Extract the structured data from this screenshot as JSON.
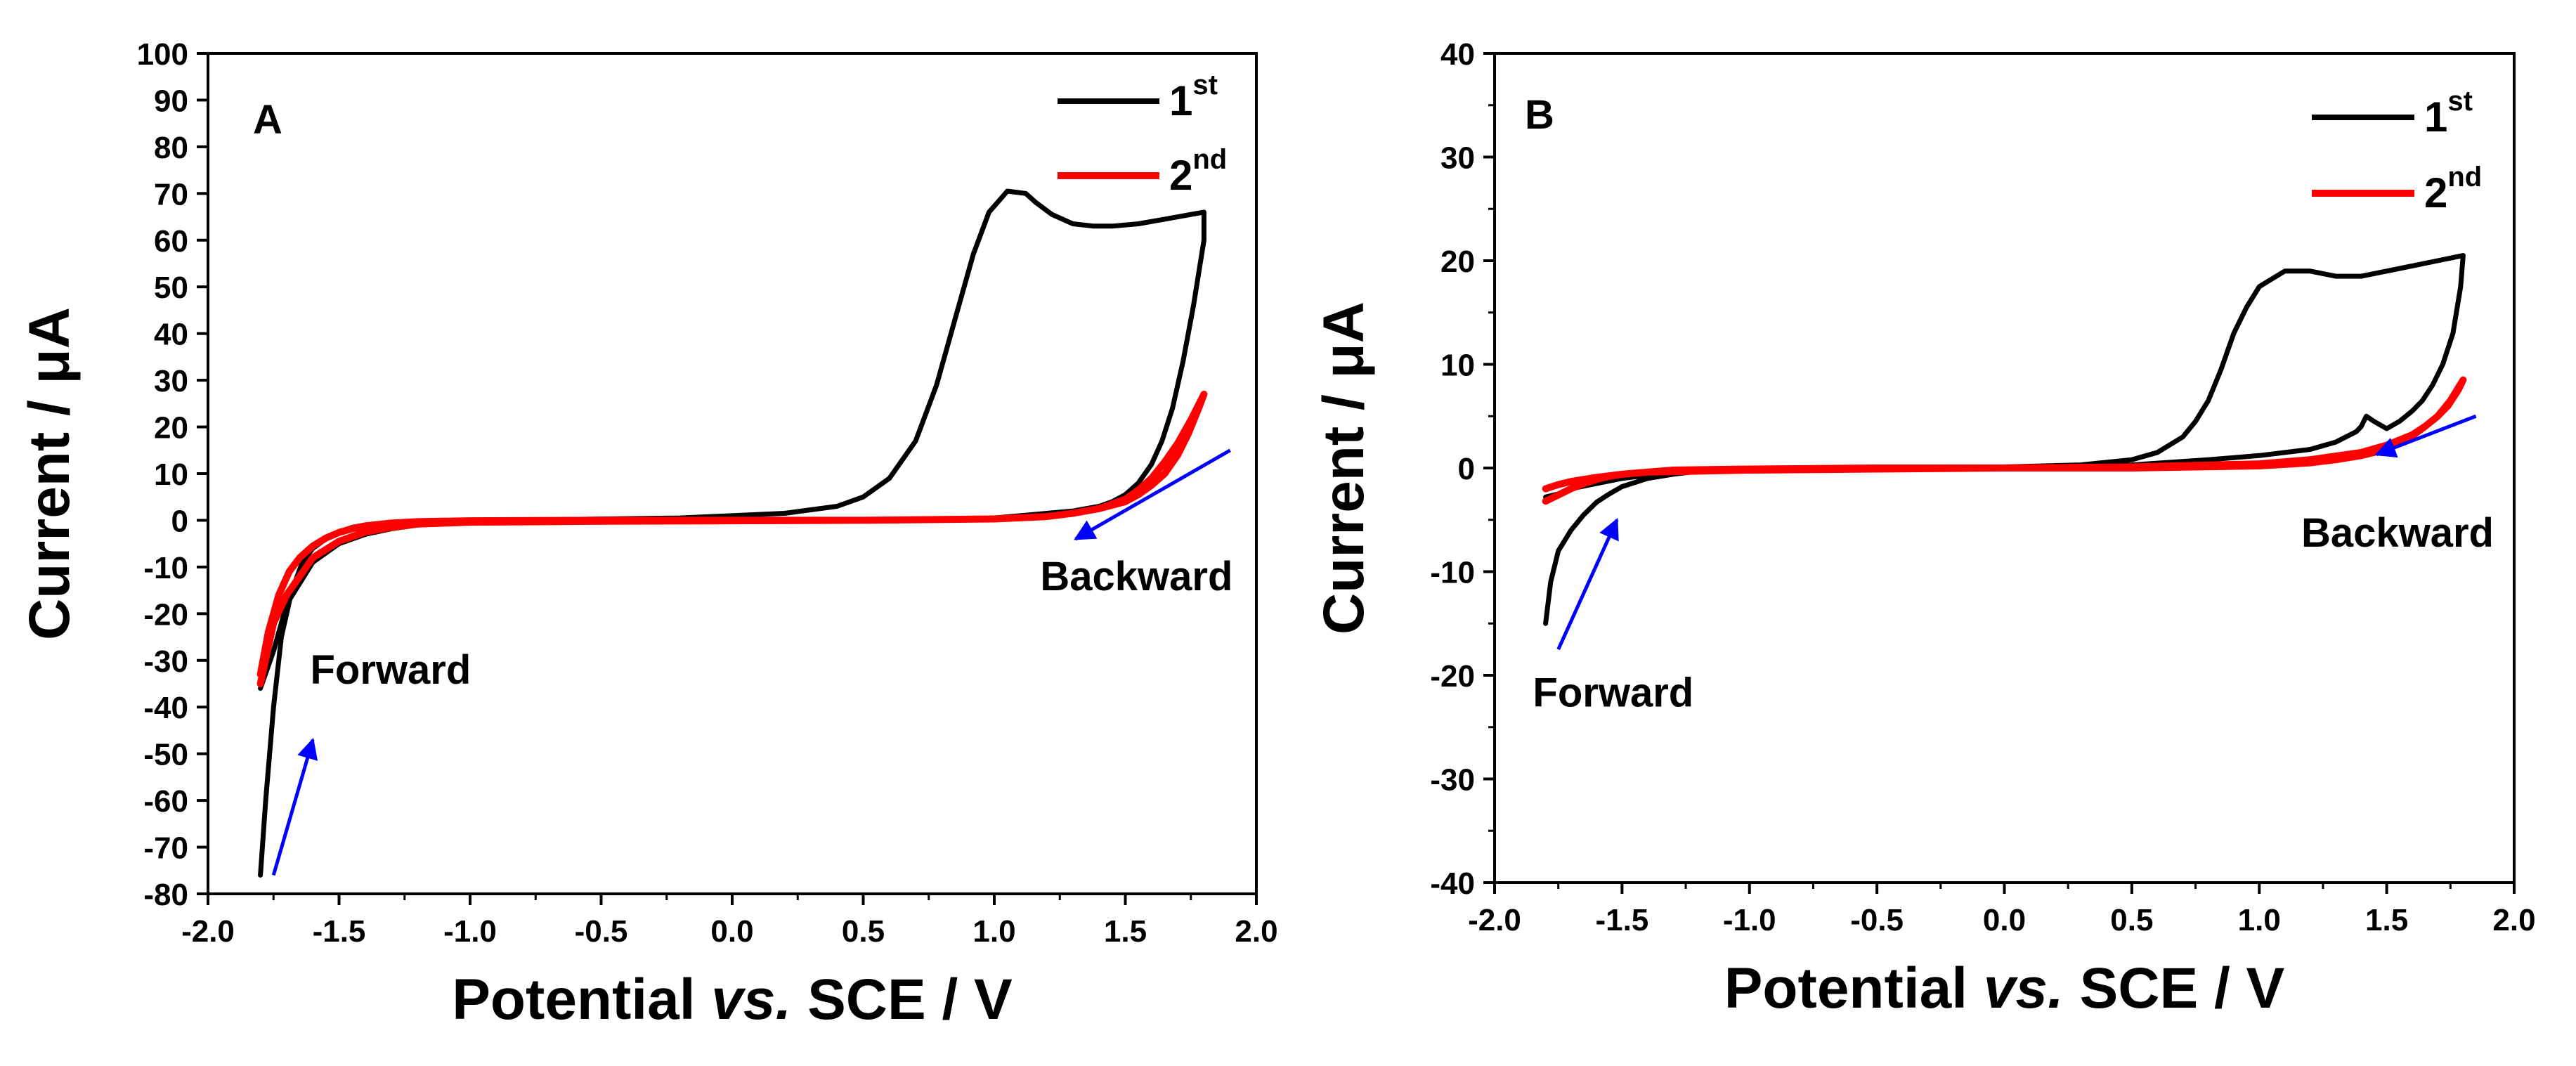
{
  "chart_data": [
    {
      "type": "line",
      "panel": "A",
      "xlabel": "Potential",
      "xlabel_italic": "vs.",
      "xlabel_rest": "SCE / V",
      "ylabel": "Current / μA",
      "xlim": [
        -2.0,
        2.0
      ],
      "ylim": [
        -80,
        100
      ],
      "xticks": [
        -2.0,
        -1.5,
        -1.0,
        -0.5,
        0.0,
        0.5,
        1.0,
        1.5,
        2.0
      ],
      "xtick_labels": [
        "-2.0",
        "-1.5",
        "-1.0",
        "-0.5",
        "0.0",
        "0.5",
        "1.0",
        "1.5",
        "2.0"
      ],
      "yticks": [
        -80,
        -70,
        -60,
        -50,
        -40,
        -30,
        -20,
        -10,
        0,
        10,
        20,
        30,
        40,
        50,
        60,
        70,
        80,
        90,
        100
      ],
      "ytick_labels": [
        "-80",
        "-70",
        "-60",
        "-50",
        "-40",
        "-30",
        "-20",
        "-10",
        "0",
        "10",
        "20",
        "30",
        "40",
        "50",
        "60",
        "70",
        "80",
        "90",
        "100"
      ],
      "legend_position": "top-right",
      "series": [
        {
          "name_base": "1",
          "name_sup": "st",
          "color": "#000000",
          "x": [
            -1.8,
            -1.78,
            -1.75,
            -1.72,
            -1.68,
            -1.64,
            -1.6,
            -1.55,
            -1.5,
            -1.45,
            -1.4,
            -1.3,
            -1.2,
            -1.0,
            -0.6,
            -0.2,
            0.2,
            0.4,
            0.5,
            0.6,
            0.7,
            0.78,
            0.85,
            0.92,
            0.98,
            1.05,
            1.12,
            1.16,
            1.22,
            1.3,
            1.38,
            1.45,
            1.55,
            1.65,
            1.75,
            1.8,
            1.8,
            1.76,
            1.72,
            1.68,
            1.64,
            1.6,
            1.55,
            1.5,
            1.45,
            1.4,
            1.3,
            1.2,
            1.1,
            1.0,
            0.8,
            0.5,
            0.0,
            -0.5,
            -1.0,
            -1.2,
            -1.3,
            -1.4,
            -1.5,
            -1.6,
            -1.7,
            -1.75,
            -1.8
          ],
          "y": [
            -76,
            -60,
            -40,
            -25,
            -15,
            -9,
            -6,
            -4,
            -2.5,
            -1.5,
            -1,
            -0.5,
            -0.3,
            -0.1,
            0.2,
            0.5,
            1.5,
            3,
            5,
            9,
            17,
            29,
            43,
            57,
            66,
            70.5,
            70,
            68,
            65.5,
            63.5,
            63,
            63,
            63.5,
            64.5,
            65.5,
            66,
            60,
            46,
            34,
            24,
            17,
            12,
            8,
            5.5,
            4,
            3,
            2,
            1.5,
            1,
            0.5,
            0.2,
            0,
            0,
            -0.2,
            -0.5,
            -1,
            -1.8,
            -3,
            -5,
            -9,
            -18,
            -28,
            -36
          ]
        },
        {
          "name_base": "2",
          "name_sup": "nd",
          "color": "#ff0000",
          "x": [
            -1.8,
            -1.77,
            -1.73,
            -1.69,
            -1.65,
            -1.6,
            -1.55,
            -1.5,
            -1.45,
            -1.4,
            -1.3,
            -1.2,
            -1.0,
            -0.5,
            0.0,
            0.5,
            1.0,
            1.2,
            1.3,
            1.4,
            1.5,
            1.55,
            1.6,
            1.65,
            1.7,
            1.75,
            1.8,
            1.78,
            1.74,
            1.7,
            1.65,
            1.6,
            1.55,
            1.5,
            1.4,
            1.3,
            1.2,
            1.0,
            0.5,
            0.0,
            -0.5,
            -1.0,
            -1.2,
            -1.3,
            -1.4,
            -1.5,
            -1.6,
            -1.7,
            -1.75,
            -1.8
          ],
          "y": [
            -33,
            -24,
            -16,
            -11,
            -8,
            -5.5,
            -3.8,
            -2.6,
            -1.8,
            -1.2,
            -0.6,
            -0.3,
            -0.1,
            0,
            0,
            0,
            0.3,
            0.8,
            1.5,
            2.5,
            4.5,
            6.5,
            9,
            12.5,
            16.5,
            21.5,
            27,
            24,
            18.5,
            14,
            10,
            7.5,
            5.5,
            4,
            2.5,
            1.5,
            0.8,
            0.3,
            0,
            -0.1,
            -0.2,
            -0.4,
            -0.8,
            -1.5,
            -2.5,
            -4.5,
            -8,
            -16,
            -22,
            -35
          ]
        }
      ],
      "annotations": [
        {
          "text": "Forward",
          "x": -1.61,
          "y": -35,
          "anchor": "start"
        },
        {
          "text": "Backward",
          "x": 1.91,
          "y": -15,
          "anchor": "end"
        }
      ],
      "arrows": [
        {
          "from": [
            -1.75,
            -76
          ],
          "to": [
            -1.6,
            -47
          ],
          "color": "#0000ff"
        },
        {
          "from": [
            1.9,
            15
          ],
          "to": [
            1.31,
            -4
          ],
          "color": "#0000ff"
        }
      ]
    },
    {
      "type": "line",
      "panel": "B",
      "xlabel": "Potential",
      "xlabel_italic": "vs.",
      "xlabel_rest": "SCE / V",
      "ylabel": "Current / μA",
      "xlim": [
        -2.0,
        2.0
      ],
      "ylim": [
        -40,
        40
      ],
      "xticks": [
        -2.0,
        -1.5,
        -1.0,
        -0.5,
        0.0,
        0.5,
        1.0,
        1.5,
        2.0
      ],
      "xtick_labels": [
        "-2.0",
        "-1.5",
        "-1.0",
        "-0.5",
        "0.0",
        "0.5",
        "1.0",
        "1.5",
        "2.0"
      ],
      "yticks": [
        -40,
        -30,
        -20,
        -10,
        0,
        10,
        20,
        30,
        40
      ],
      "ytick_labels": [
        "-40",
        "-30",
        "-20",
        "-10",
        "0",
        "10",
        "20",
        "30",
        "40"
      ],
      "legend_position": "top-right",
      "series": [
        {
          "name_base": "1",
          "name_sup": "st",
          "color": "#000000",
          "x": [
            -1.8,
            -1.78,
            -1.75,
            -1.7,
            -1.65,
            -1.6,
            -1.55,
            -1.5,
            -1.4,
            -1.3,
            -1.2,
            -1.0,
            -0.5,
            0.0,
            0.3,
            0.5,
            0.6,
            0.7,
            0.75,
            0.8,
            0.85,
            0.9,
            0.95,
            1.0,
            1.1,
            1.2,
            1.3,
            1.4,
            1.5,
            1.6,
            1.7,
            1.8,
            1.79,
            1.76,
            1.72,
            1.68,
            1.64,
            1.6,
            1.55,
            1.5,
            1.45,
            1.42,
            1.4,
            1.38,
            1.3,
            1.2,
            1.0,
            0.8,
            0.5,
            0.0,
            -0.5,
            -1.0,
            -1.2,
            -1.4,
            -1.5,
            -1.6,
            -1.7,
            -1.75,
            -1.8
          ],
          "y": [
            -15,
            -11,
            -8,
            -6,
            -4.5,
            -3.3,
            -2.5,
            -1.8,
            -1,
            -0.6,
            -0.3,
            -0.1,
            0,
            0.1,
            0.3,
            0.8,
            1.5,
            3,
            4.5,
            6.5,
            9.5,
            13,
            15.5,
            17.5,
            19,
            19,
            18.5,
            18.5,
            19,
            19.5,
            20,
            20.5,
            17.5,
            13,
            10,
            8,
            6.5,
            5.5,
            4.5,
            3.8,
            4.5,
            5,
            4,
            3.5,
            2.5,
            1.8,
            1.2,
            0.8,
            0.3,
            0,
            0,
            -0.2,
            -0.3,
            -0.7,
            -1,
            -1.5,
            -2,
            -2.5,
            -2.8
          ]
        },
        {
          "name_base": "2",
          "name_sup": "nd",
          "color": "#ff0000",
          "x": [
            -1.8,
            -1.75,
            -1.7,
            -1.65,
            -1.6,
            -1.55,
            -1.5,
            -1.4,
            -1.3,
            -1.0,
            -0.5,
            0.0,
            0.5,
            1.0,
            1.2,
            1.3,
            1.4,
            1.5,
            1.55,
            1.6,
            1.65,
            1.7,
            1.75,
            1.8,
            1.78,
            1.74,
            1.7,
            1.65,
            1.6,
            1.5,
            1.4,
            1.2,
            1.0,
            0.5,
            0.0,
            -0.5,
            -1.0,
            -1.2,
            -1.4,
            -1.5,
            -1.6,
            -1.7,
            -1.75,
            -1.8
          ],
          "y": [
            -3.2,
            -2.6,
            -2,
            -1.5,
            -1.1,
            -0.8,
            -0.6,
            -0.4,
            -0.2,
            -0.1,
            0,
            0,
            0,
            0.2,
            0.5,
            0.8,
            1.2,
            1.8,
            2.4,
            3.1,
            4,
            5,
            6.5,
            8.5,
            7.5,
            6,
            5,
            4,
            3.2,
            2.2,
            1.5,
            0.8,
            0.4,
            0.1,
            0,
            -0.1,
            -0.2,
            -0.3,
            -0.4,
            -0.6,
            -0.9,
            -1.3,
            -1.6,
            -2
          ]
        }
      ],
      "annotations": [
        {
          "text": "Forward",
          "x": -1.85,
          "y": -23,
          "anchor": "start"
        },
        {
          "text": "Backward",
          "x": 1.92,
          "y": -7.6,
          "anchor": "end"
        }
      ],
      "arrows": [
        {
          "from": [
            -1.75,
            -17.5
          ],
          "to": [
            -1.52,
            -5
          ],
          "color": "#0000ff"
        },
        {
          "from": [
            1.85,
            5
          ],
          "to": [
            1.46,
            1.3
          ],
          "color": "#0000ff"
        }
      ]
    }
  ]
}
